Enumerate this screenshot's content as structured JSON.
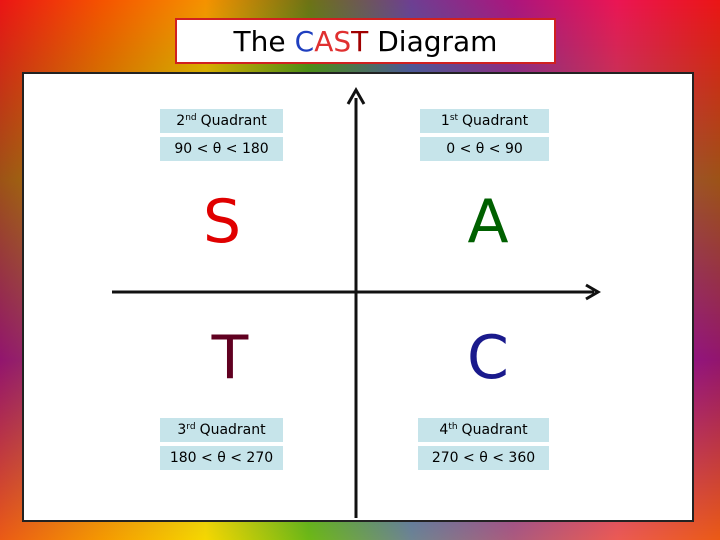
{
  "title": {
    "prefix": "The",
    "letters": [
      "C",
      "A",
      "S",
      "T"
    ],
    "suffix": "Diagram"
  },
  "quadrants": [
    {
      "number": "2",
      "ordinal": "nd",
      "word": "Quadrant",
      "range": "90 < θ < 180",
      "letter": "S"
    },
    {
      "number": "1",
      "ordinal": "st",
      "word": "Quadrant",
      "range": "0 < θ < 90",
      "letter": "A"
    },
    {
      "number": "3",
      "ordinal": "rd",
      "word": "Quadrant",
      "range": "180 < θ < 270",
      "letter": "T"
    },
    {
      "number": "4",
      "ordinal": "th",
      "word": "Quadrant",
      "range": "270 < θ < 360",
      "letter": "C"
    }
  ]
}
